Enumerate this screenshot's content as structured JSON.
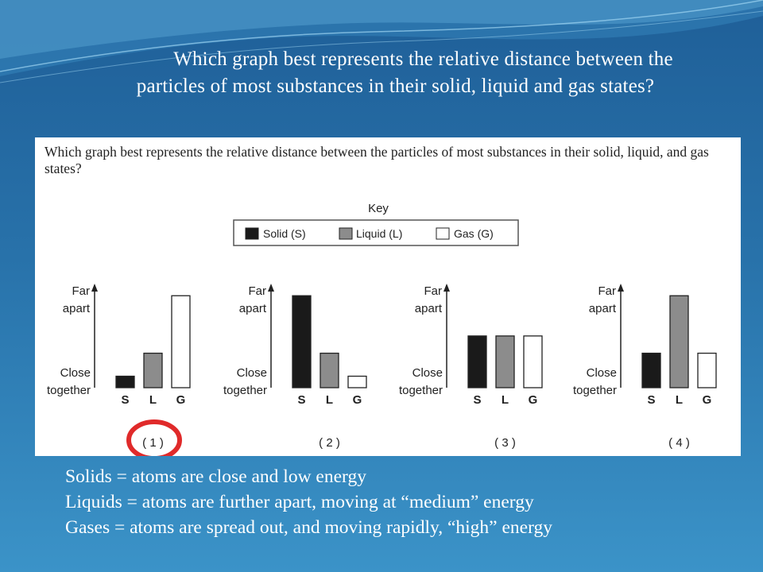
{
  "title": {
    "line1": "Which graph best represents the relative distance between the",
    "line2": "particles of most substances in their solid, liquid and gas states?"
  },
  "figure": {
    "question": "Which graph best represents the relative distance between the particles of most substances in their solid, liquid, and gas states?",
    "key": {
      "title": "Key",
      "items": [
        {
          "label": "Solid (S)",
          "color": "#1a1a1a"
        },
        {
          "label": "Liquid (L)",
          "color": "#8c8c8c"
        },
        {
          "label": "Gas (G)",
          "color": "#ffffff"
        }
      ]
    },
    "y_top_label": [
      "Far",
      "apart"
    ],
    "y_bottom_label": [
      "Close",
      "together"
    ],
    "highlight_color": "#e02a2a",
    "highlighted_option": "( 1 )"
  },
  "chart_data": [
    {
      "type": "bar",
      "option": "( 1 )",
      "categories": [
        "S",
        "L",
        "G"
      ],
      "values": [
        1,
        3,
        8
      ],
      "ylim": [
        0,
        8.5
      ]
    },
    {
      "type": "bar",
      "option": "( 2 )",
      "categories": [
        "S",
        "L",
        "G"
      ],
      "values": [
        8,
        3,
        1
      ],
      "ylim": [
        0,
        8.5
      ]
    },
    {
      "type": "bar",
      "option": "( 3 )",
      "categories": [
        "S",
        "L",
        "G"
      ],
      "values": [
        4.5,
        4.5,
        4.5
      ],
      "ylim": [
        0,
        8.5
      ]
    },
    {
      "type": "bar",
      "option": "( 4 )",
      "categories": [
        "S",
        "L",
        "G"
      ],
      "values": [
        3,
        8,
        3
      ],
      "ylim": [
        0,
        8.5
      ]
    }
  ],
  "notes": [
    "Solids = atoms are close and low energy",
    "Liquids = atoms are further apart, moving at “medium” energy",
    "Gases = atoms are spread out, and moving rapidly, “high” energy"
  ]
}
